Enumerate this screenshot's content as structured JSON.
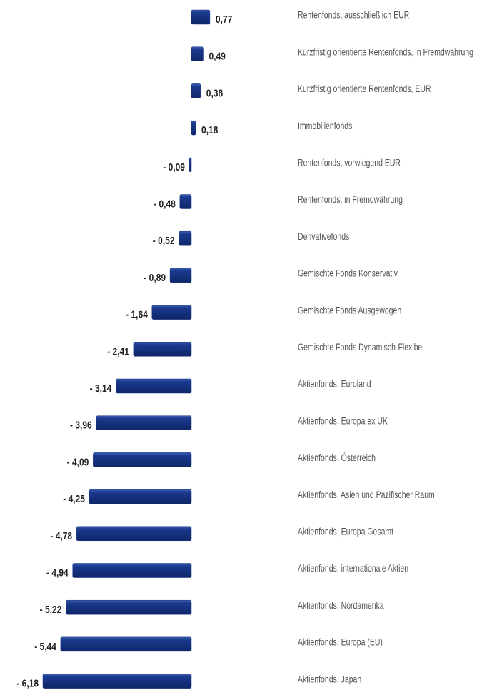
{
  "chart_data": {
    "type": "bar",
    "orientation": "horizontal",
    "categories": [
      "Rentenfonds, ausschließlich EUR",
      "Kurzfristig orientierte Rentenfonds, in Fremdwährung",
      "Kurzfristig orientierte Rentenfonds,  EUR",
      "Immobilienfonds",
      "Rentenfonds, vorwiegend EUR",
      "Rentenfonds, in Fremdwährung",
      "Derivativefonds",
      "Gemischte Fonds Konservativ",
      "Gemischte Fonds Ausgewogen",
      "Gemischte Fonds Dynamisch-Flexibel",
      "Aktienfonds, Euroland",
      "Aktienfonds, Europa ex UK",
      "Aktienfonds, Österreich",
      "Aktienfonds, Asien und Pazifischer Raum",
      "Aktienfonds, Europa Gesamt",
      "Aktienfonds, internationale Aktien",
      "Aktienfonds, Nordamerika",
      "Aktienfonds, Europa (EU)",
      "Aktienfonds, Japan"
    ],
    "values": [
      0.77,
      0.49,
      0.38,
      0.18,
      -0.09,
      -0.48,
      -0.52,
      -0.89,
      -1.64,
      -2.41,
      -3.14,
      -3.96,
      -4.09,
      -4.25,
      -4.78,
      -4.94,
      -5.22,
      -5.44,
      -6.18
    ],
    "value_labels": [
      "0,77",
      "0,49",
      "0,38",
      "0,18",
      "- 0,09",
      "- 0,48",
      "- 0,52",
      "- 0,89",
      "- 1,64",
      "- 2,41",
      "- 3,14",
      "- 3,96",
      "- 4,09",
      "- 4,25",
      "- 4,78",
      "- 4,94",
      "- 5,22",
      "- 5,44",
      "- 6,18"
    ],
    "color": "#16317f"
  }
}
